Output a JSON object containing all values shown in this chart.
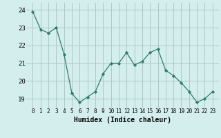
{
  "x": [
    0,
    1,
    2,
    3,
    4,
    5,
    6,
    7,
    8,
    9,
    10,
    11,
    12,
    13,
    14,
    15,
    16,
    17,
    18,
    19,
    20,
    21,
    22,
    23
  ],
  "y": [
    23.9,
    22.9,
    22.7,
    23.0,
    21.5,
    19.3,
    18.8,
    19.1,
    19.4,
    20.4,
    21.0,
    21.0,
    21.6,
    20.9,
    21.1,
    21.6,
    21.8,
    20.6,
    20.3,
    19.9,
    19.4,
    18.8,
    19.0,
    19.4
  ],
  "line_color": "#2e7d6e",
  "marker": "D",
  "marker_size": 2.2,
  "bg_color": "#d4eded",
  "grid_color": "#adc8c8",
  "xlabel": "Humidex (Indice chaleur)",
  "ylim": [
    18.5,
    24.4
  ],
  "yticks": [
    19,
    20,
    21,
    22,
    23,
    24
  ],
  "xticks": [
    0,
    1,
    2,
    3,
    4,
    5,
    6,
    7,
    8,
    9,
    10,
    11,
    12,
    13,
    14,
    15,
    16,
    17,
    18,
    19,
    20,
    21,
    22,
    23
  ],
  "xlabel_fontsize": 7.0,
  "ytick_fontsize": 6.5,
  "xtick_fontsize": 5.5
}
